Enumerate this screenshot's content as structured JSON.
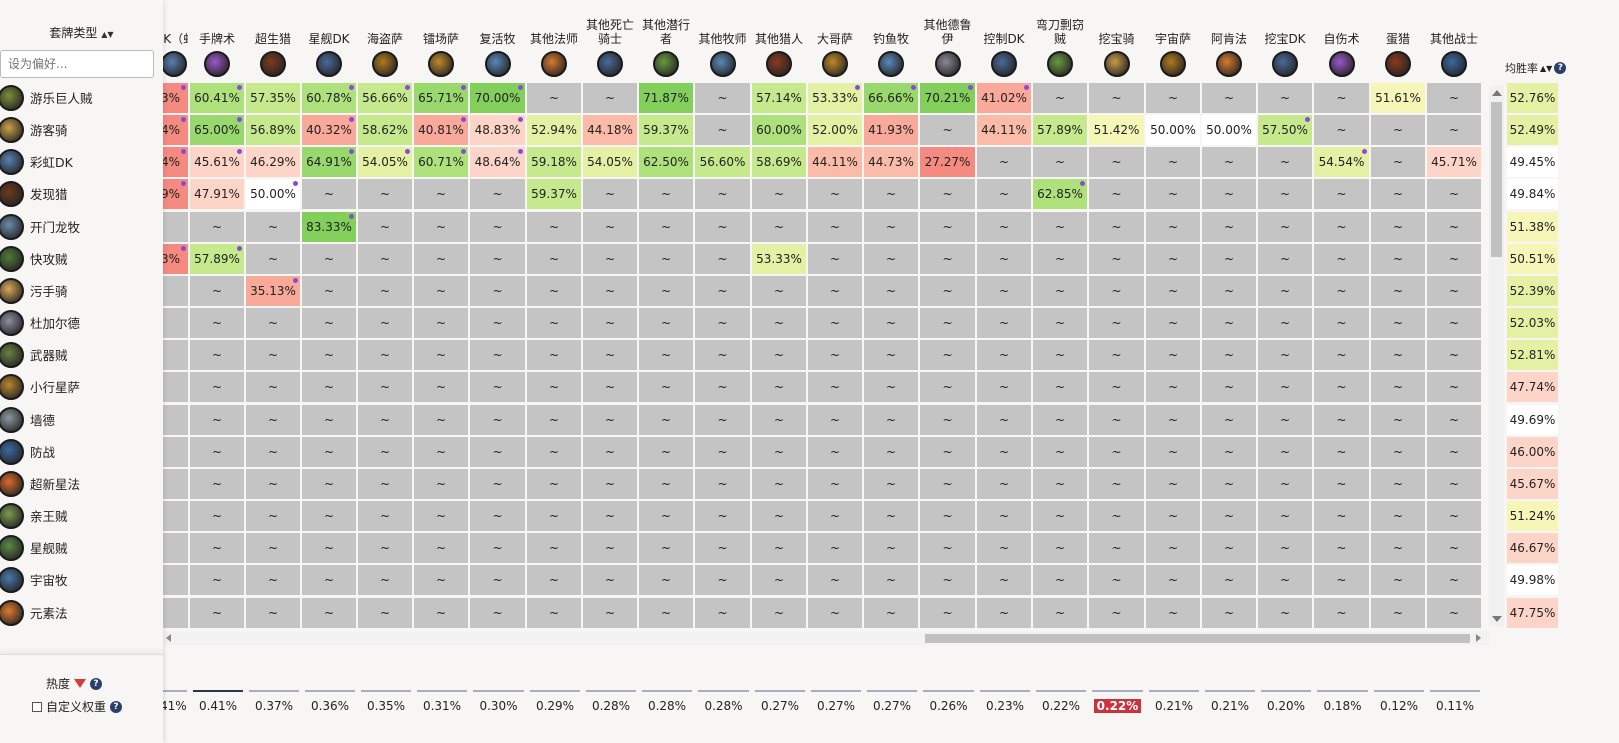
{
  "sidebar": {
    "title": "套牌类型",
    "sort_icon": "▲▼",
    "search_placeholder": "设为偏好...",
    "rows": [
      {
        "name": "游乐巨人贼",
        "c": "#7b8f3a"
      },
      {
        "name": "游客骑",
        "c": "#c9a24a"
      },
      {
        "name": "彩虹DK",
        "c": "#5a7fb0"
      },
      {
        "name": "发现猎",
        "c": "#6a3a1e"
      },
      {
        "name": "开门龙牧",
        "c": "#6c8ba8"
      },
      {
        "name": "快攻贼",
        "c": "#4f7a3a"
      },
      {
        "name": "污手骑",
        "c": "#d8a85a"
      },
      {
        "name": "杜加尔德",
        "c": "#8a8fa0"
      },
      {
        "name": "武器贼",
        "c": "#6a8040"
      },
      {
        "name": "小行星萨",
        "c": "#b8862e"
      },
      {
        "name": "墙德",
        "c": "#8a9aa0"
      },
      {
        "name": "防战",
        "c": "#3b6aa0"
      },
      {
        "name": "超新星法",
        "c": "#d76a2a"
      },
      {
        "name": "亲王贼",
        "c": "#7a9a50"
      },
      {
        "name": "星舰贼",
        "c": "#5a8a48"
      },
      {
        "name": "宇宙牧",
        "c": "#4a78a8"
      },
      {
        "name": "元素法",
        "c": "#e07a30"
      }
    ],
    "bottom": {
      "hot_label": "热度",
      "custom_label": "自定义权重",
      "help": "?"
    }
  },
  "columns": [
    {
      "label": "彩虹DK（虹）",
      "short": "DK\n虹）",
      "c": "#5a7fb0"
    },
    {
      "label": "手牌术",
      "c": "#9a58c8"
    },
    {
      "label": "超生猎",
      "c": "#7a3a20"
    },
    {
      "label": "星舰DK",
      "c": "#4a6a98"
    },
    {
      "label": "海盗萨",
      "c": "#b07a20"
    },
    {
      "label": "镭场萨",
      "c": "#c08a28"
    },
    {
      "label": "复活牧",
      "c": "#5a88b8"
    },
    {
      "label": "其他法师",
      "c": "#d87a30"
    },
    {
      "label": "其他死亡骑士",
      "c": "#4a6a98"
    },
    {
      "label": "其他潜行者",
      "c": "#6a9a40"
    },
    {
      "label": "其他牧师",
      "c": "#5a88b8"
    },
    {
      "label": "其他猎人",
      "c": "#8a3a20"
    },
    {
      "label": "大哥萨",
      "c": "#c08a28"
    },
    {
      "label": "钓鱼牧",
      "c": "#5a88b8"
    },
    {
      "label": "其他德鲁伊",
      "c": "#8a8a98"
    },
    {
      "label": "控制DK",
      "c": "#4a6a98"
    },
    {
      "label": "弯刀剽窃贼",
      "c": "#6a9a40"
    },
    {
      "label": "挖宝骑",
      "c": "#c99a48"
    },
    {
      "label": "宇宙萨",
      "c": "#b07a20"
    },
    {
      "label": "阿肯法",
      "c": "#d87a30"
    },
    {
      "label": "挖宝DK",
      "c": "#4a6a98"
    },
    {
      "label": "自伤术",
      "c": "#9a58c8"
    },
    {
      "label": "蛋猎",
      "c": "#8a3a20"
    },
    {
      "label": "其他战士",
      "c": "#3b6aa0"
    }
  ],
  "rows": [
    [
      "3%",
      "60.41%",
      "57.35%",
      "60.78%",
      "56.66%",
      "65.71%",
      "70.00%",
      "~",
      "~",
      "71.87%",
      "~",
      "57.14%",
      "53.33%",
      "66.66%",
      "70.21%",
      "41.02%",
      "~",
      "~",
      "~",
      "~",
      "~",
      "~",
      "51.61%",
      "~"
    ],
    [
      "4%",
      "65.00%",
      "56.89%",
      "40.32%",
      "58.62%",
      "40.81%",
      "48.83%",
      "52.94%",
      "44.18%",
      "59.37%",
      "~",
      "60.00%",
      "52.00%",
      "41.93%",
      "~",
      "44.11%",
      "57.89%",
      "51.42%",
      "50.00%",
      "50.00%",
      "57.50%",
      "~",
      "~",
      "~"
    ],
    [
      "4%",
      "45.61%",
      "46.29%",
      "64.91%",
      "54.05%",
      "60.71%",
      "48.64%",
      "59.18%",
      "54.05%",
      "62.50%",
      "56.60%",
      "58.69%",
      "44.11%",
      "44.73%",
      "27.27%",
      "~",
      "~",
      "~",
      "~",
      "~",
      "~",
      "54.54%",
      "~",
      "45.71%"
    ],
    [
      "9%",
      "47.91%",
      "50.00%",
      "~",
      "~",
      "~",
      "~",
      "59.37%",
      "~",
      "~",
      "~",
      "~",
      "~",
      "~",
      "~",
      "~",
      "62.85%",
      "~",
      "~",
      "~",
      "~",
      "~",
      "~",
      "~"
    ],
    [
      "",
      "~",
      "~",
      "83.33%",
      "~",
      "~",
      "~",
      "~",
      "~",
      "~",
      "~",
      "~",
      "~",
      "~",
      "~",
      "~",
      "~",
      "~",
      "~",
      "~",
      "~",
      "~",
      "~",
      "~"
    ],
    [
      "3%",
      "57.89%",
      "~",
      "~",
      "~",
      "~",
      "~",
      "~",
      "~",
      "~",
      "~",
      "53.33%",
      "~",
      "~",
      "~",
      "~",
      "~",
      "~",
      "~",
      "~",
      "~",
      "~",
      "~",
      "~"
    ],
    [
      "",
      "~",
      "35.13%",
      "~",
      "~",
      "~",
      "~",
      "~",
      "~",
      "~",
      "~",
      "~",
      "~",
      "~",
      "~",
      "~",
      "~",
      "~",
      "~",
      "~",
      "~",
      "~",
      "~",
      "~"
    ],
    [
      "",
      "~",
      "~",
      "~",
      "~",
      "~",
      "~",
      "~",
      "~",
      "~",
      "~",
      "~",
      "~",
      "~",
      "~",
      "~",
      "~",
      "~",
      "~",
      "~",
      "~",
      "~",
      "~",
      "~"
    ],
    [
      "",
      "~",
      "~",
      "~",
      "~",
      "~",
      "~",
      "~",
      "~",
      "~",
      "~",
      "~",
      "~",
      "~",
      "~",
      "~",
      "~",
      "~",
      "~",
      "~",
      "~",
      "~",
      "~",
      "~"
    ],
    [
      "",
      "~",
      "~",
      "~",
      "~",
      "~",
      "~",
      "~",
      "~",
      "~",
      "~",
      "~",
      "~",
      "~",
      "~",
      "~",
      "~",
      "~",
      "~",
      "~",
      "~",
      "~",
      "~",
      "~"
    ],
    [
      "",
      "~",
      "~",
      "~",
      "~",
      "~",
      "~",
      "~",
      "~",
      "~",
      "~",
      "~",
      "~",
      "~",
      "~",
      "~",
      "~",
      "~",
      "~",
      "~",
      "~",
      "~",
      "~",
      "~"
    ],
    [
      "",
      "~",
      "~",
      "~",
      "~",
      "~",
      "~",
      "~",
      "~",
      "~",
      "~",
      "~",
      "~",
      "~",
      "~",
      "~",
      "~",
      "~",
      "~",
      "~",
      "~",
      "~",
      "~",
      "~"
    ],
    [
      "",
      "~",
      "~",
      "~",
      "~",
      "~",
      "~",
      "~",
      "~",
      "~",
      "~",
      "~",
      "~",
      "~",
      "~",
      "~",
      "~",
      "~",
      "~",
      "~",
      "~",
      "~",
      "~",
      "~"
    ],
    [
      "",
      "~",
      "~",
      "~",
      "~",
      "~",
      "~",
      "~",
      "~",
      "~",
      "~",
      "~",
      "~",
      "~",
      "~",
      "~",
      "~",
      "~",
      "~",
      "~",
      "~",
      "~",
      "~",
      "~"
    ],
    [
      "",
      "~",
      "~",
      "~",
      "~",
      "~",
      "~",
      "~",
      "~",
      "~",
      "~",
      "~",
      "~",
      "~",
      "~",
      "~",
      "~",
      "~",
      "~",
      "~",
      "~",
      "~",
      "~",
      "~"
    ],
    [
      "",
      "~",
      "~",
      "~",
      "~",
      "~",
      "~",
      "~",
      "~",
      "~",
      "~",
      "~",
      "~",
      "~",
      "~",
      "~",
      "~",
      "~",
      "~",
      "~",
      "~",
      "~",
      "~",
      "~"
    ],
    [
      "",
      "~",
      "~",
      "~",
      "~",
      "~",
      "~",
      "~",
      "~",
      "~",
      "~",
      "~",
      "~",
      "~",
      "~",
      "~",
      "~",
      "~",
      "~",
      "~",
      "~",
      "~",
      "~",
      "~"
    ]
  ],
  "dots": [
    [
      0,
      0
    ],
    [
      0,
      1
    ],
    [
      0,
      3
    ],
    [
      0,
      4
    ],
    [
      0,
      5
    ],
    [
      0,
      6
    ],
    [
      0,
      12
    ],
    [
      0,
      13
    ],
    [
      0,
      14
    ],
    [
      0,
      15
    ],
    [
      1,
      0
    ],
    [
      1,
      1
    ],
    [
      1,
      3
    ],
    [
      1,
      5
    ],
    [
      1,
      6
    ],
    [
      1,
      20
    ],
    [
      2,
      0
    ],
    [
      2,
      1
    ],
    [
      2,
      3
    ],
    [
      2,
      4
    ],
    [
      2,
      5
    ],
    [
      2,
      6
    ],
    [
      2,
      21
    ],
    [
      3,
      0
    ],
    [
      3,
      2
    ],
    [
      3,
      16
    ],
    [
      4,
      3
    ],
    [
      5,
      0
    ],
    [
      5,
      1
    ],
    [
      6,
      2
    ]
  ],
  "winrate": {
    "label": "均胜率",
    "sort_icon": "▲▼",
    "values": [
      "52.76%",
      "52.49%",
      "49.45%",
      "49.84%",
      "51.38%",
      "50.51%",
      "52.39%",
      "52.03%",
      "52.81%",
      "47.74%",
      "49.69%",
      "46.00%",
      "45.67%",
      "51.24%",
      "46.67%",
      "49.98%",
      "47.75%"
    ]
  },
  "popularity": [
    "41%",
    "0.41%",
    "0.37%",
    "0.36%",
    "0.35%",
    "0.31%",
    "0.30%",
    "0.29%",
    "0.28%",
    "0.28%",
    "0.28%",
    "0.27%",
    "0.27%",
    "0.27%",
    "0.26%",
    "0.23%",
    "0.22%",
    "0.22%",
    "0.21%",
    "0.21%",
    "0.20%",
    "0.18%",
    "0.12%",
    "0.11%"
  ],
  "popularity_highlight_index": 17
}
